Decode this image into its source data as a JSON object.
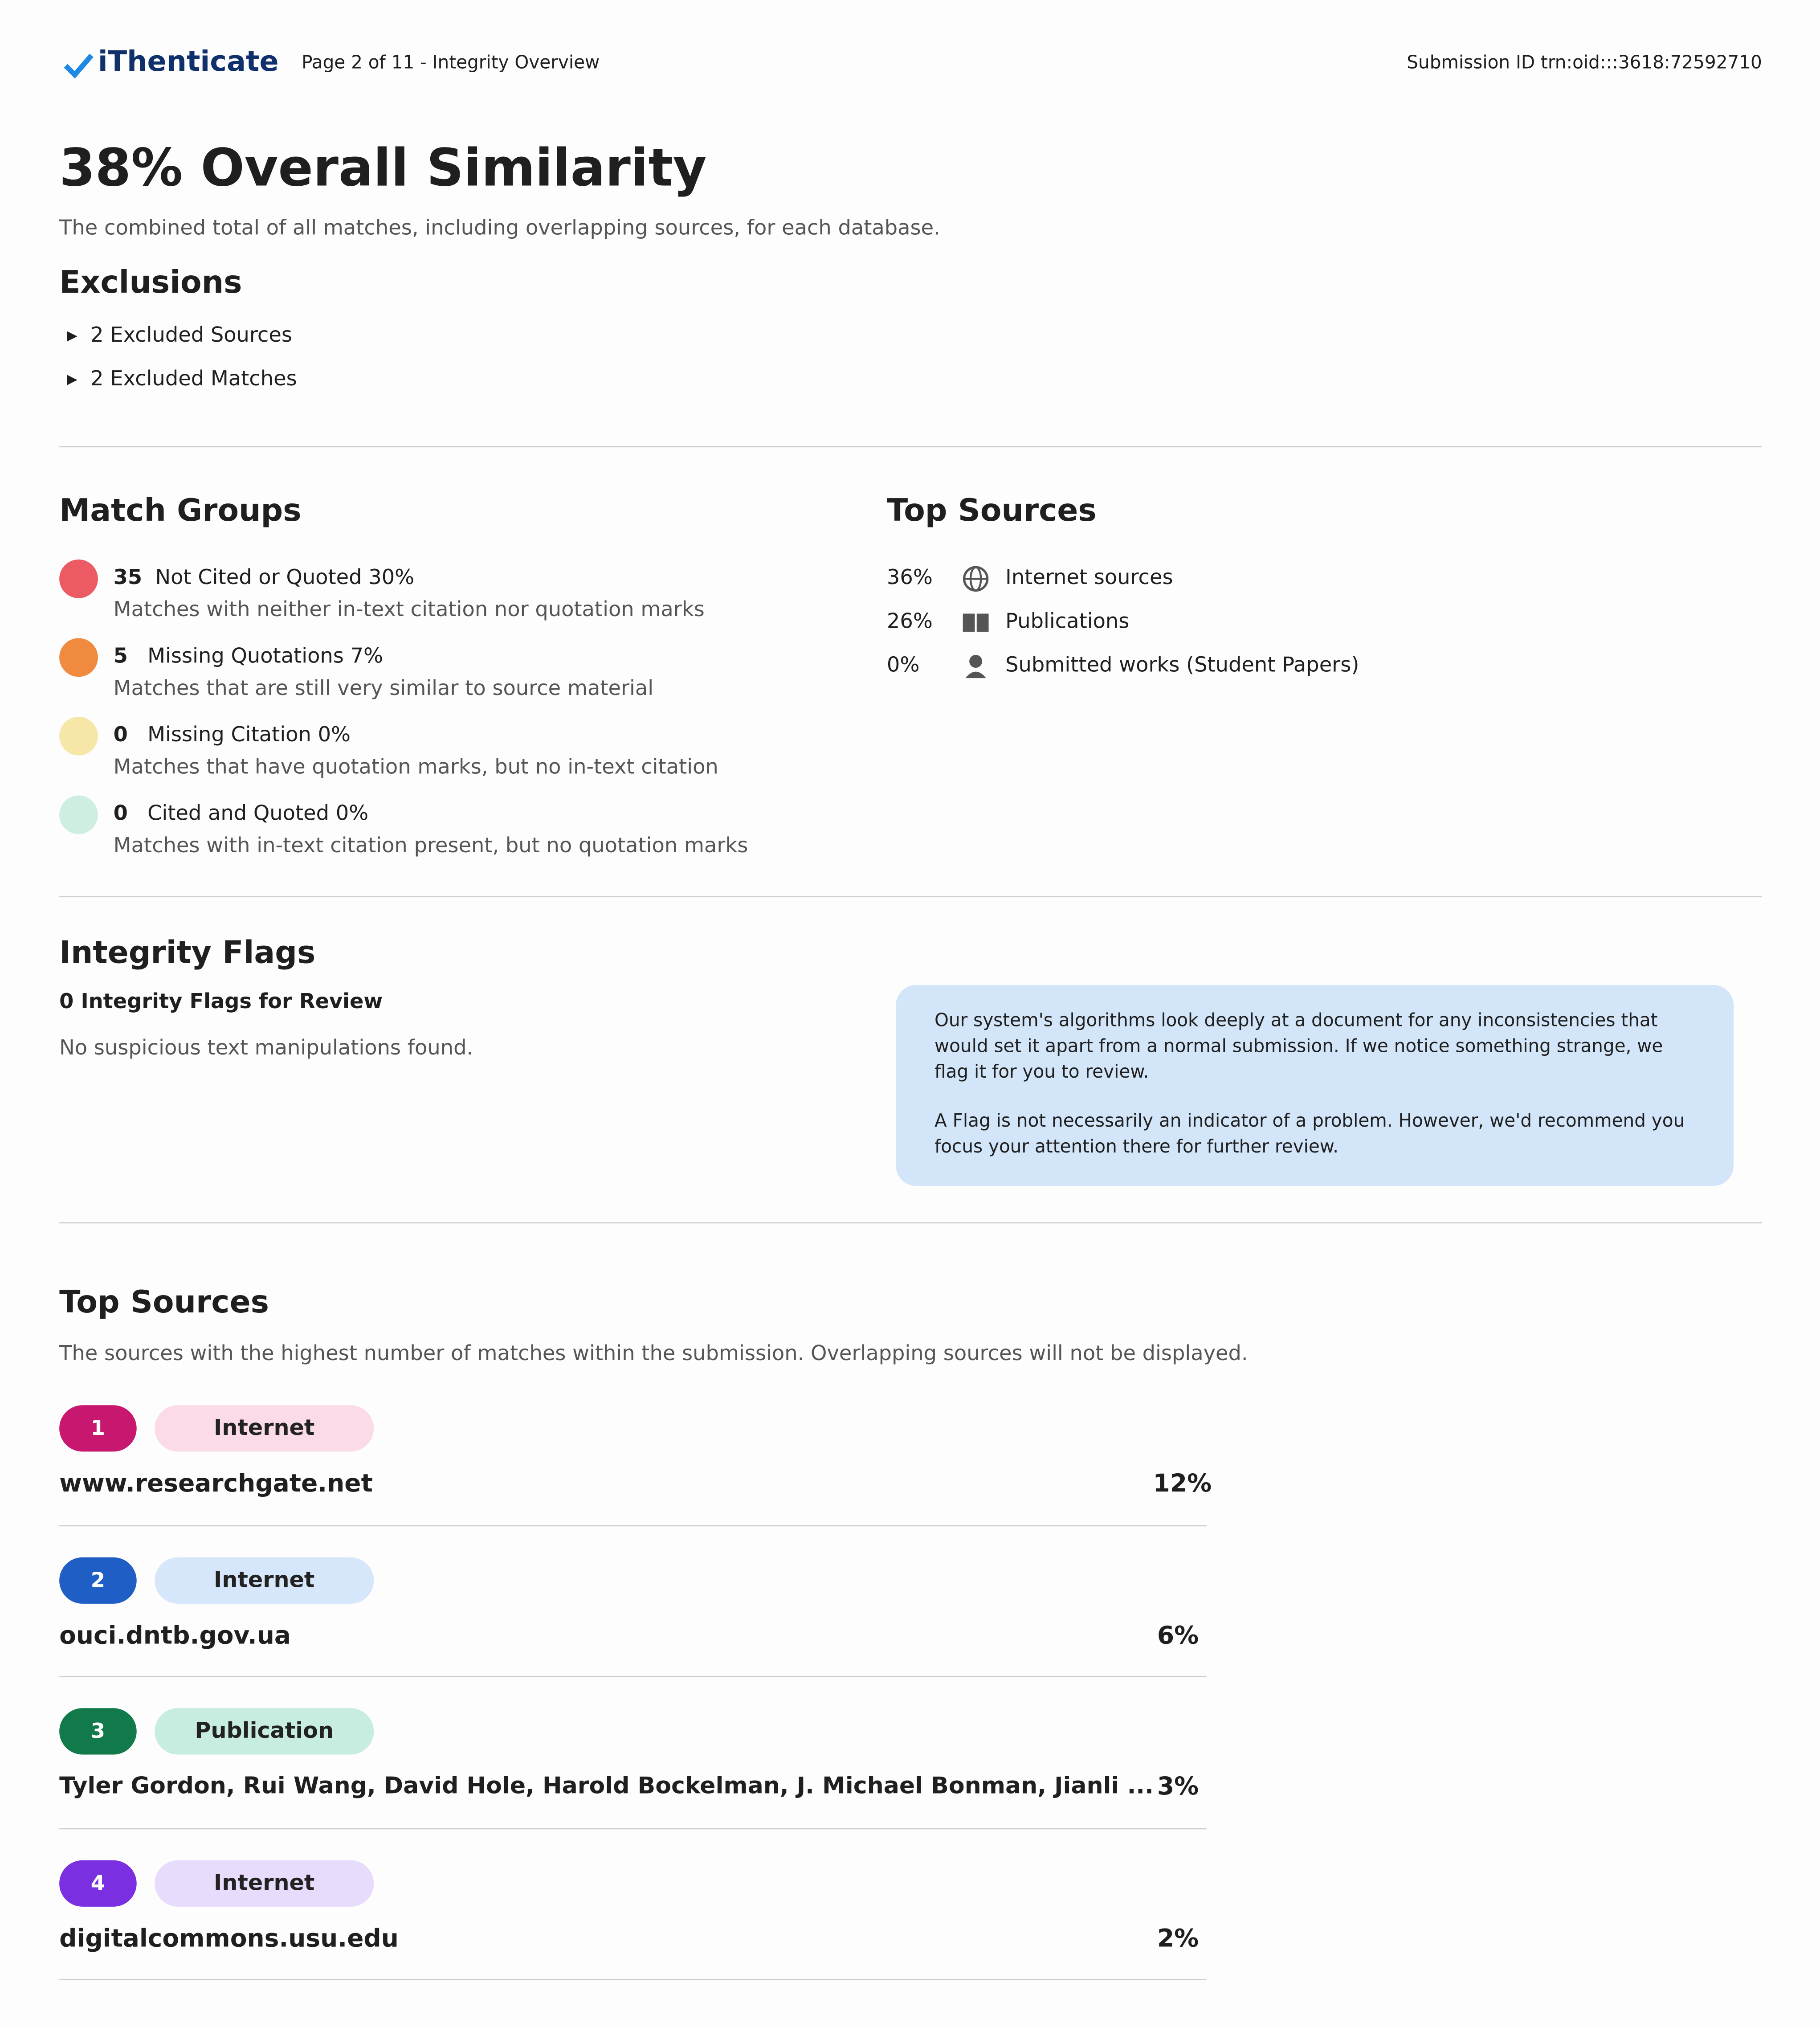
{
  "header": {
    "brand": "iThenticate",
    "page": "Page 2 of 11 - Integrity Overview",
    "submission": "Submission ID trn:oid:::3618:72592710"
  },
  "overview": {
    "title": "38% Overall Similarity",
    "subtitle": "The combined total of all matches, including overlapping sources, for each database.",
    "exclusions_title": "Exclusions",
    "exclusions": [
      "2 Excluded Sources",
      "2 Excluded Matches"
    ]
  },
  "match_groups": {
    "title": "Match Groups",
    "items": [
      {
        "count": "35",
        "label": "Not Cited or Quoted 30%",
        "description": "Matches with neither in-text citation nor quotation marks"
      },
      {
        "count": "5",
        "label": "Missing Quotations 7%",
        "description": "Matches that are still very similar to source material"
      },
      {
        "count": "0",
        "label": "Missing Citation 0%",
        "description": "Matches that have quotation marks, but no in-text citation"
      },
      {
        "count": "0",
        "label": "Cited and Quoted 0%",
        "description": "Matches with in-text citation present, but no quotation marks"
      }
    ]
  },
  "top_sources_summary": {
    "title": "Top Sources",
    "items": [
      {
        "percent": "36%",
        "label": "Internet sources"
      },
      {
        "percent": "26%",
        "label": "Publications"
      },
      {
        "percent": "0%",
        "label": "Submitted works (Student Papers)"
      }
    ]
  },
  "integrity_flags": {
    "title": "Integrity Flags",
    "count": "0 Integrity Flags for Review",
    "status": "No suspicious text manipulations found.",
    "info": [
      "Our system's algorithms look deeply at a document for any inconsistencies that would set it apart from a normal submission. If we notice something strange, we flag it for you to review.",
      "A Flag is not necessarily an indicator of a problem. However, we'd recommend you focus your attention there for further review."
    ]
  },
  "top_sources": {
    "title": "Top Sources",
    "subtitle": "The sources with the highest number of matches within the submission. Overlapping sources will not be displayed.",
    "items": [
      {
        "rank": "1",
        "type": "Internet",
        "name": "www.researchgate.net",
        "percent": "12%"
      },
      {
        "rank": "2",
        "type": "Internet",
        "name": "ouci.dntb.gov.ua",
        "percent": "6%"
      },
      {
        "rank": "3",
        "type": "Publication",
        "name": "Tyler Gordon, Rui Wang, David Hole, Harold Bockelman, J. Michael Bonman, Jianli ...",
        "percent": "3%"
      },
      {
        "rank": "4",
        "type": "Internet",
        "name": "digitalcommons.usu.edu",
        "percent": "2%"
      }
    ]
  }
}
